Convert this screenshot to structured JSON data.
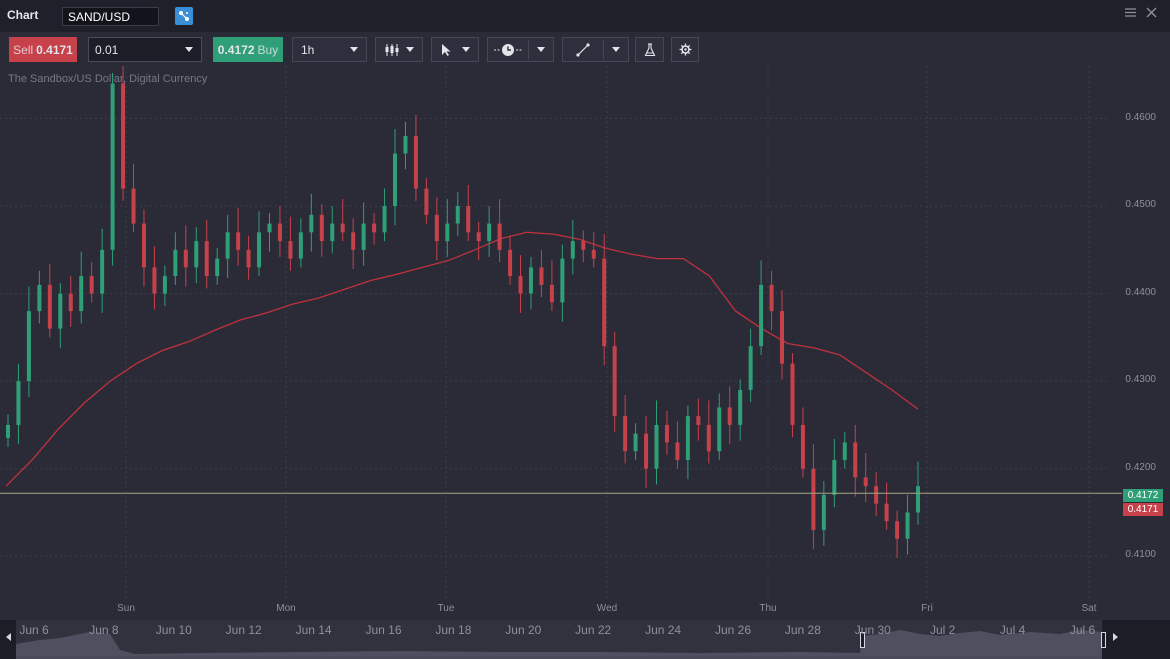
{
  "window": {
    "title": "Chart",
    "symbol": "SAND/USD"
  },
  "toolbar": {
    "sell_label": "Sell",
    "sell_price": "0.4171",
    "quantity": "0.01",
    "buy_price": "0.4172",
    "buy_label": "Buy",
    "timeframe": "1h"
  },
  "chart": {
    "subtitle": "The Sandbox/US Dollar, Digital Currency",
    "y_labels": [
      "0.4600",
      "0.4500",
      "0.4400",
      "0.4300",
      "0.4200",
      "0.4100"
    ],
    "buy_badge": "0.4172",
    "sell_badge": "0.4171",
    "x_labels": [
      "Sun",
      "Mon",
      "Tue",
      "Wed",
      "Thu",
      "Fri",
      "Sat"
    ]
  },
  "navigator": {
    "labels": [
      "Jun 6",
      "Jun 8",
      "Jun 10",
      "Jun 12",
      "Jun 14",
      "Jun 16",
      "Jun 18",
      "Jun 20",
      "Jun 22",
      "Jun 24",
      "Jun 26",
      "Jun 28",
      "Jun 30",
      "Jul 2",
      "Jul 4",
      "Jul 6"
    ]
  },
  "chart_data": {
    "type": "candlestick",
    "title": "The Sandbox/US Dollar, Digital Currency",
    "symbol": "SAND/USD",
    "interval": "1h",
    "ylim": [
      0.405,
      0.466
    ],
    "y_ticks": [
      0.46,
      0.45,
      0.44,
      0.43,
      0.42,
      0.41
    ],
    "x_ticks": [
      "Sun",
      "Mon",
      "Tue",
      "Wed",
      "Thu",
      "Fri",
      "Sat"
    ],
    "current_bid": 0.4171,
    "current_ask": 0.4172,
    "colors": {
      "up": "#2e9f77",
      "down": "#c7414b",
      "moving_average": "#c0313d",
      "price_line": "#a4a488"
    },
    "close_series": [
      0.425,
      0.43,
      0.438,
      0.441,
      0.436,
      0.44,
      0.438,
      0.442,
      0.44,
      0.445,
      0.464,
      0.452,
      0.448,
      0.443,
      0.44,
      0.442,
      0.445,
      0.443,
      0.446,
      0.442,
      0.444,
      0.447,
      0.445,
      0.443,
      0.447,
      0.448,
      0.446,
      0.444,
      0.447,
      0.449,
      0.446,
      0.448,
      0.447,
      0.445,
      0.448,
      0.447,
      0.45,
      0.456,
      0.458,
      0.452,
      0.449,
      0.446,
      0.448,
      0.45,
      0.447,
      0.446,
      0.448,
      0.445,
      0.442,
      0.44,
      0.443,
      0.441,
      0.439,
      0.444,
      0.446,
      0.445,
      0.444,
      0.434,
      0.426,
      0.422,
      0.424,
      0.42,
      0.425,
      0.423,
      0.421,
      0.426,
      0.425,
      0.422,
      0.427,
      0.425,
      0.429,
      0.434,
      0.441,
      0.438,
      0.432,
      0.425,
      0.42,
      0.413,
      0.417,
      0.421,
      0.423,
      0.419,
      0.418,
      0.416,
      0.414,
      0.412,
      0.415,
      0.418
    ],
    "moving_average": [
      0.418,
      0.421,
      0.4245,
      0.4275,
      0.43,
      0.432,
      0.4335,
      0.4345,
      0.4358,
      0.437,
      0.4378,
      0.4388,
      0.4395,
      0.4405,
      0.4415,
      0.4422,
      0.443,
      0.4438,
      0.445,
      0.4463,
      0.447,
      0.4468,
      0.4462,
      0.4452,
      0.4445,
      0.444,
      0.444,
      0.442,
      0.438,
      0.436,
      0.4343,
      0.4338,
      0.433,
      0.431,
      0.429,
      0.4268
    ]
  }
}
